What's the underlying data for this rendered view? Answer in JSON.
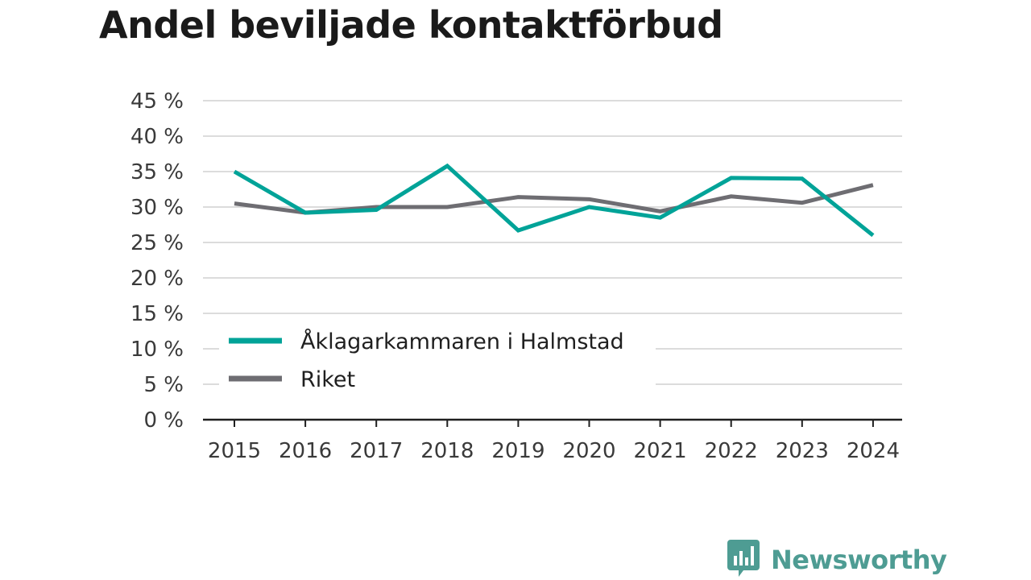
{
  "title": "Andel beviljade kontaktförbud",
  "logo": {
    "text": "Newsworthy",
    "icon": "bar-chart-speech-bubble-icon",
    "color": "#4e9c93"
  },
  "chart_data": {
    "type": "line",
    "title": "Andel beviljade kontaktförbud",
    "x": [
      "2015",
      "2016",
      "2017",
      "2018",
      "2019",
      "2020",
      "2021",
      "2022",
      "2023",
      "2024"
    ],
    "series": [
      {
        "name": "Åklagarkammaren i Halmstad",
        "color": "#00a398",
        "values": [
          35.0,
          29.2,
          29.6,
          35.8,
          26.7,
          30.0,
          28.5,
          34.1,
          34.0,
          26.0
        ]
      },
      {
        "name": "Riket",
        "color": "#6e6d72",
        "values": [
          30.5,
          29.2,
          30.0,
          30.0,
          31.4,
          31.1,
          29.4,
          31.5,
          30.6,
          33.1
        ]
      }
    ],
    "ylim": [
      0,
      45
    ],
    "yticks": [
      0,
      5,
      10,
      15,
      20,
      25,
      30,
      35,
      40,
      45
    ],
    "ytick_labels": [
      "0 %",
      "5 %",
      "10 %",
      "15 %",
      "20 %",
      "25 %",
      "30 %",
      "35 %",
      "40 %",
      "45 %"
    ],
    "xlabel": "",
    "ylabel": "",
    "grid": true,
    "legend_position": "lower-left"
  }
}
